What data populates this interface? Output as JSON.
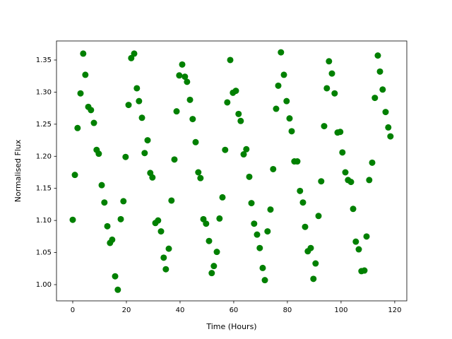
{
  "chart_data": {
    "type": "scatter",
    "xlabel": "Time (Hours)",
    "ylabel": "Normalised Flux",
    "color": "#008000",
    "x": [
      0,
      0.8,
      1.8,
      2.9,
      3.9,
      4.7,
      5.8,
      6.8,
      7.9,
      8.9,
      9.7,
      10.8,
      11.8,
      12.9,
      13.9,
      14.7,
      15.8,
      16.8,
      17.9,
      18.9,
      19.7,
      20.8,
      21.8,
      22.9,
      23.9,
      24.7,
      25.8,
      26.8,
      27.9,
      28.9,
      29.7,
      30.8,
      31.8,
      32.9,
      33.9,
      34.7,
      35.8,
      36.8,
      37.9,
      38.7,
      39.7,
      40.8,
      41.8,
      42.6,
      43.7,
      44.7,
      45.8,
      46.8,
      47.6,
      48.7,
      49.7,
      50.8,
      51.8,
      52.6,
      53.7,
      54.7,
      55.8,
      56.8,
      57.6,
      58.7,
      59.7,
      60.8,
      61.8,
      62.6,
      63.7,
      64.7,
      65.8,
      66.6,
      67.6,
      68.7,
      69.7,
      70.8,
      71.6,
      72.6,
      73.7,
      74.7,
      75.8,
      76.6,
      77.6,
      78.7,
      79.7,
      80.8,
      81.6,
      82.6,
      83.7,
      84.7,
      85.8,
      86.6,
      87.6,
      88.7,
      89.7,
      90.5,
      91.6,
      92.6,
      93.7,
      94.7,
      95.5,
      96.6,
      97.6,
      98.7,
      99.7,
      100.5,
      101.6,
      102.6,
      103.7,
      104.5,
      105.5,
      106.6,
      107.6,
      108.7,
      109.5,
      110.5,
      111.6,
      112.6,
      113.7,
      114.5,
      115.5,
      116.6,
      117.6,
      118.4
    ],
    "values": [
      1.101,
      1.171,
      1.244,
      1.298,
      1.36,
      1.327,
      1.277,
      1.272,
      1.252,
      1.21,
      1.204,
      1.155,
      1.128,
      1.091,
      1.065,
      1.07,
      1.013,
      0.992,
      1.102,
      1.13,
      1.199,
      1.28,
      1.353,
      1.36,
      1.306,
      1.286,
      1.26,
      1.205,
      1.225,
      1.174,
      1.167,
      1.096,
      1.1,
      1.083,
      1.042,
      1.024,
      1.056,
      1.131,
      1.195,
      1.27,
      1.326,
      1.343,
      1.324,
      1.316,
      1.288,
      1.258,
      1.222,
      1.175,
      1.166,
      1.102,
      1.095,
      1.068,
      1.018,
      1.029,
      1.051,
      1.103,
      1.136,
      1.21,
      1.284,
      1.35,
      1.299,
      1.302,
      1.266,
      1.255,
      1.203,
      1.211,
      1.168,
      1.127,
      1.095,
      1.078,
      1.057,
      1.026,
      1.007,
      1.083,
      1.117,
      1.18,
      1.274,
      1.31,
      1.362,
      1.327,
      1.286,
      1.259,
      1.239,
      1.192,
      1.192,
      1.146,
      1.128,
      1.09,
      1.052,
      1.057,
      1.009,
      1.033,
      1.107,
      1.161,
      1.247,
      1.306,
      1.348,
      1.329,
      1.298,
      1.237,
      1.238,
      1.206,
      1.175,
      1.163,
      1.16,
      1.118,
      1.067,
      1.055,
      1.021,
      1.022,
      1.075,
      1.163,
      1.19,
      1.291,
      1.357,
      1.332,
      1.304,
      1.269,
      1.245,
      1.231
    ],
    "xlim": [
      -6.05,
      124.5
    ],
    "xticks": [
      0,
      20,
      40,
      60,
      80,
      100,
      120
    ],
    "ylim": [
      0.9747,
      1.3797
    ],
    "yticks": [
      {
        "value": 1.0,
        "label": "1.00"
      },
      1.05,
      {
        "value": 1.1,
        "label": "1.10"
      },
      1.15,
      {
        "value": 1.2,
        "label": "1.20"
      },
      1.25,
      {
        "value": 1.3,
        "label": "1.30"
      },
      1.35
    ],
    "grid": false
  }
}
